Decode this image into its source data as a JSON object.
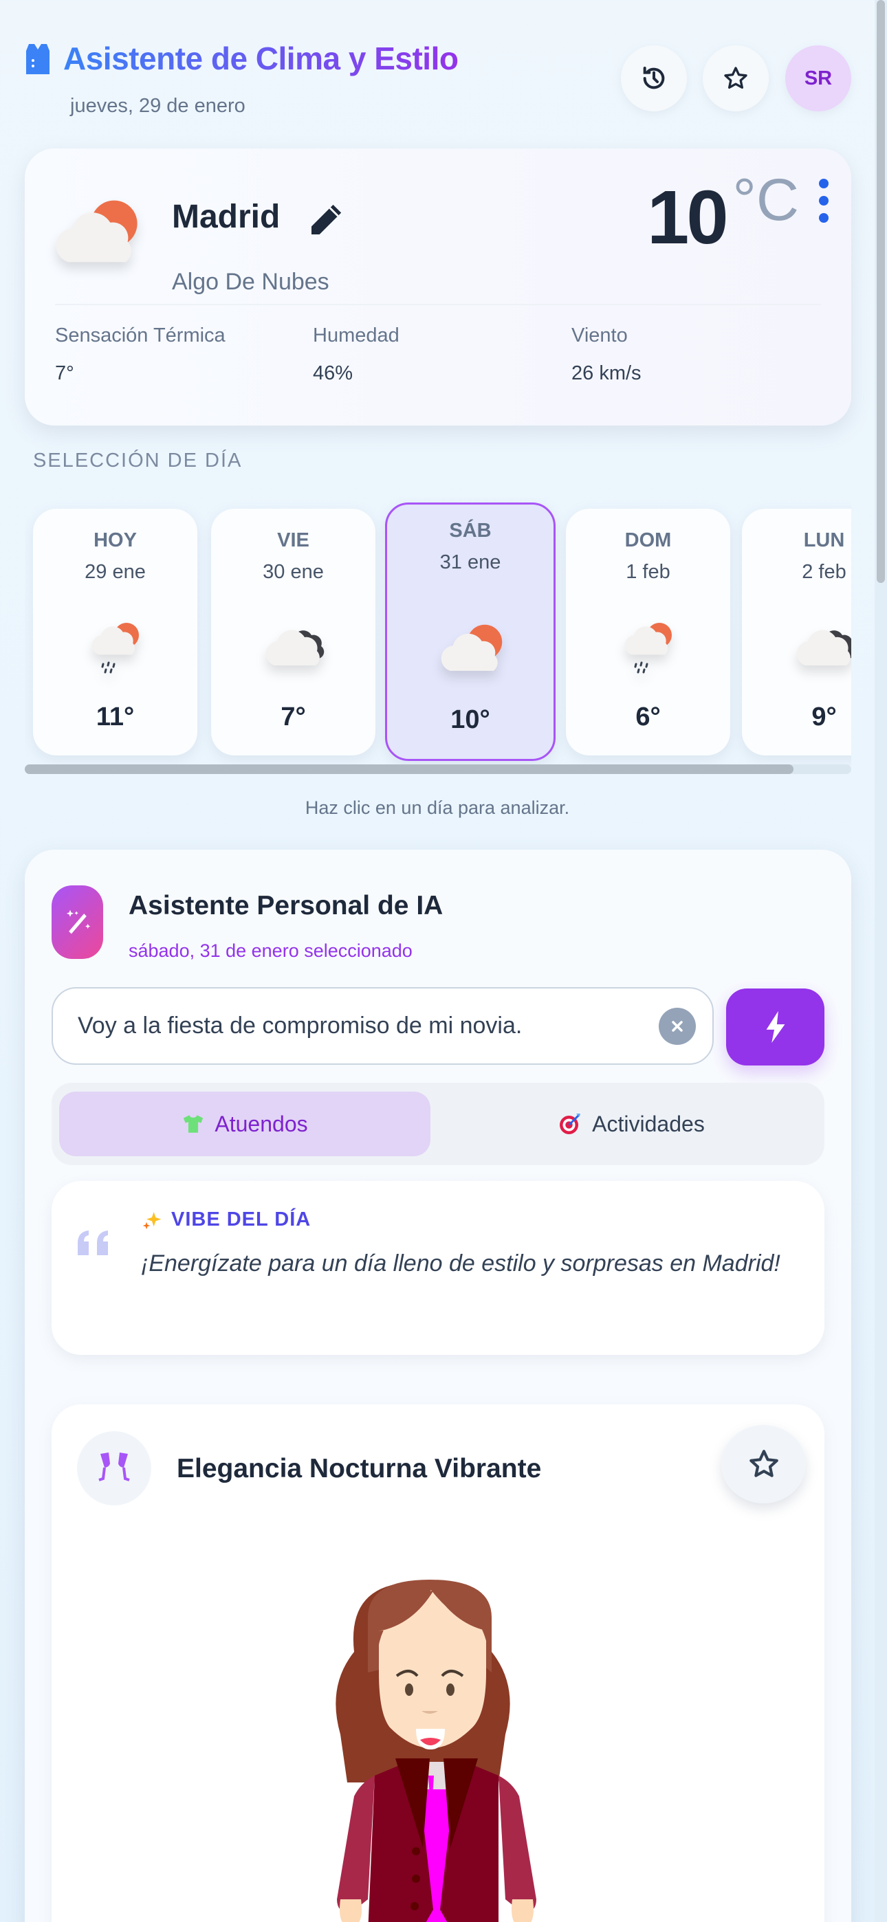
{
  "header": {
    "title": "Asistente de Clima y Estilo",
    "title_icon": "vest-icon",
    "date": "jueves, 29 de enero",
    "buttons": [
      {
        "icon": "history-icon"
      },
      {
        "icon": "star-icon"
      }
    ],
    "avatar_initials": "SR"
  },
  "weather": {
    "city": "Madrid",
    "condition": "Algo De Nubes",
    "temperature": "10",
    "unit": "°C",
    "icon": "partly-cloudy",
    "stats": [
      {
        "label": "Sensación Térmica",
        "value": "7°"
      },
      {
        "label": "Humedad",
        "value": "46%"
      },
      {
        "label": "Viento",
        "value": "26 km/s"
      }
    ]
  },
  "day_selection": {
    "title": "SELECCIÓN DE DÍA",
    "hint": "Haz clic en un día para analizar.",
    "selected_index": 2,
    "scroll_fraction": 0.93,
    "days": [
      {
        "name": "HOY",
        "date": "29 ene",
        "temp": "11°",
        "icon": "sun-cloud-rain"
      },
      {
        "name": "VIE",
        "date": "30 ene",
        "temp": "7°",
        "icon": "cloudy"
      },
      {
        "name": "SÁB",
        "date": "31 ene",
        "temp": "10°",
        "icon": "partly-cloudy"
      },
      {
        "name": "DOM",
        "date": "1 feb",
        "temp": "6°",
        "icon": "sun-cloud-rain"
      },
      {
        "name": "LUN",
        "date": "2 feb",
        "temp": "9°",
        "icon": "cloudy"
      }
    ]
  },
  "assistant": {
    "title": "Asistente Personal de IA",
    "subtitle": "sábado, 31 de enero seleccionado",
    "input_value": "Voy a la fiesta de compromiso de mi novia.",
    "tabs": [
      {
        "label": "Atuendos",
        "icon": "tshirt-icon",
        "active": true
      },
      {
        "label": "Actividades",
        "icon": "target-icon",
        "active": false
      }
    ],
    "vibe": {
      "label": "VIBE DEL DÍA",
      "text": "¡Energízate para un día lleno de estilo y sorpresas en Madrid!"
    },
    "outfit": {
      "title": "Elegancia Nocturna Vibrante",
      "icon": "champagne-glasses-icon"
    }
  },
  "colors": {
    "accent": "#9333ea",
    "primary": "#3b82f6",
    "selected_border": "#a855f7",
    "vibe_label": "#4f46e5"
  }
}
